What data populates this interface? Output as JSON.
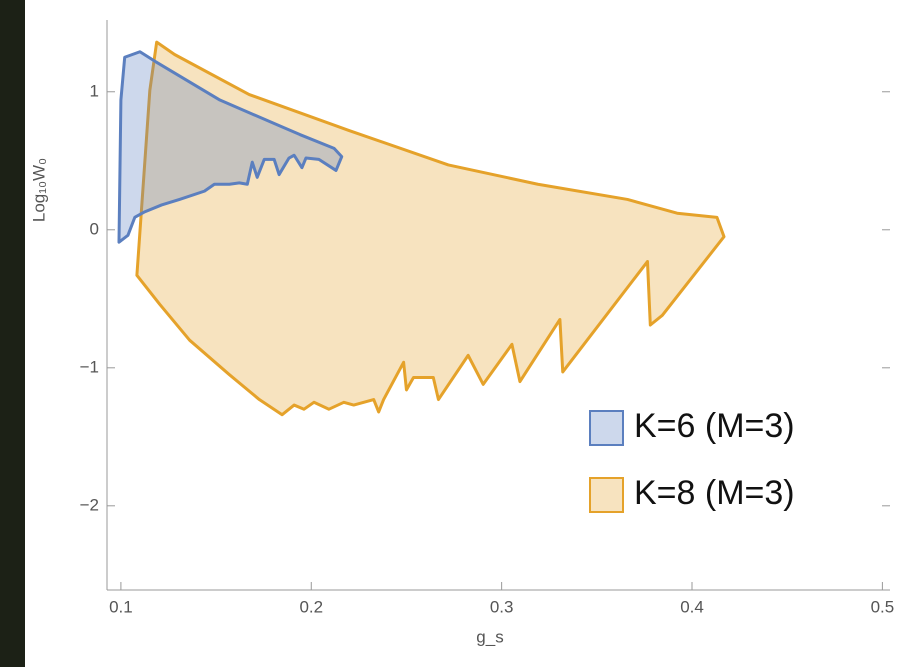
{
  "chart_data": {
    "type": "polygon",
    "x_label": "g_s",
    "y_label": "Log₁₀W₀",
    "xlim": [
      0.0927,
      0.504
    ],
    "ylim": [
      -2.61,
      1.52
    ],
    "xticks": [
      0.1,
      0.2,
      0.3,
      0.4,
      0.5
    ],
    "yticks": [
      {
        "value": -2,
        "label": "−2"
      },
      {
        "value": -1,
        "label": "−1"
      },
      0,
      1
    ],
    "legend": "lower right",
    "series": [
      {
        "name": "K=6 (M=3)",
        "color": "#5b7fbf",
        "x": [
          0.099,
          0.1,
          0.102,
          0.11,
          0.118,
          0.152,
          0.194,
          0.212,
          0.216,
          0.213,
          0.204,
          0.1972,
          0.1951,
          0.191,
          0.1883,
          0.1831,
          0.1805,
          0.1753,
          0.1716,
          0.169,
          0.1664,
          0.1622,
          0.157,
          0.1491,
          0.1439,
          0.1308,
          0.1214,
          0.1125,
          0.1073,
          0.1037
        ],
        "values": [
          -0.09,
          0.94,
          1.25,
          1.29,
          1.22,
          0.94,
          0.69,
          0.59,
          0.53,
          0.43,
          0.51,
          0.52,
          0.45,
          0.54,
          0.52,
          0.4,
          0.51,
          0.51,
          0.38,
          0.49,
          0.33,
          0.34,
          0.33,
          0.33,
          0.28,
          0.22,
          0.18,
          0.13,
          0.09,
          -0.04
        ]
      },
      {
        "name": "K=8 (M=3)",
        "color": "#e5a22a",
        "x": [
          0.1084,
          0.1152,
          0.1188,
          0.1282,
          0.1674,
          0.2197,
          0.272,
          0.319,
          0.3661,
          0.3922,
          0.4131,
          0.4168,
          0.3844,
          0.3781,
          0.3766,
          0.3321,
          0.3306,
          0.3096,
          0.3054,
          0.2903,
          0.2824,
          0.2668,
          0.2641,
          0.2537,
          0.25,
          0.2485,
          0.238,
          0.2354,
          0.2328,
          0.2223,
          0.2171,
          0.2093,
          0.2014,
          0.1962,
          0.191,
          0.1847,
          0.1727,
          0.157,
          0.1361,
          0.1204
        ],
        "values": [
          -0.33,
          1.01,
          1.36,
          1.27,
          0.98,
          0.72,
          0.47,
          0.33,
          0.22,
          0.12,
          0.09,
          -0.05,
          -0.62,
          -0.69,
          -0.23,
          -1.03,
          -0.65,
          -1.1,
          -0.83,
          -1.12,
          -0.91,
          -1.23,
          -1.07,
          -1.07,
          -1.16,
          -0.96,
          -1.23,
          -1.32,
          -1.23,
          -1.27,
          -1.25,
          -1.3,
          -1.25,
          -1.3,
          -1.27,
          -1.34,
          -1.23,
          -1.05,
          -0.8,
          -0.54
        ]
      }
    ]
  }
}
